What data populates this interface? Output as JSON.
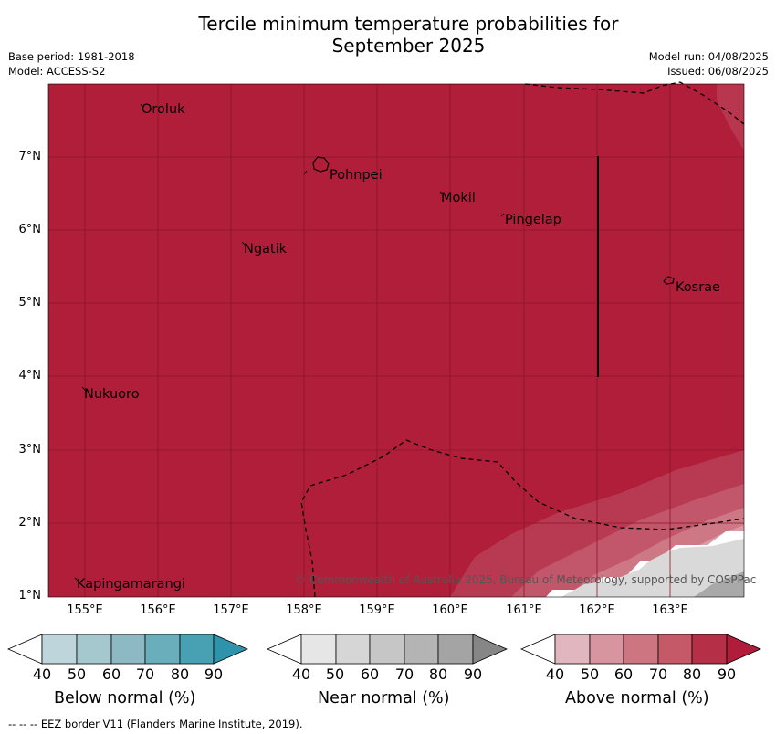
{
  "title_line1": "Tercile minimum temperature probabilities for",
  "title_line2": "September 2025",
  "base_period": "Base period: 1981-2018",
  "model": "Model: ACCESS-S2",
  "model_run": "Model run: 04/08/2025",
  "issued": "Issued: 06/08/2025",
  "lat_ticks": [
    "7°N",
    "6°N",
    "5°N",
    "4°N",
    "3°N",
    "2°N",
    "1°N"
  ],
  "lon_ticks": [
    "155°E",
    "156°E",
    "157°E",
    "158°E",
    "159°E",
    "160°E",
    "161°E",
    "162°E",
    "163°E"
  ],
  "places": {
    "oroluk": "Oroluk",
    "pohnpei": "Pohnpei",
    "mokil": "Mokil",
    "pingelap": "Pingelap",
    "ngatik": "Ngatik",
    "kosrae": "Kosrae",
    "nukuoro": "Nukuoro",
    "kapingamarangi": "Kapingamarangi"
  },
  "copyright": "© Commonwealth of Australia 2025, Bureau of Meteorology, supported by COSPPac",
  "colorbars": {
    "below": {
      "title": "Below normal (%)",
      "ticks": [
        "40",
        "50",
        "60",
        "70",
        "80",
        "90"
      ],
      "colors": [
        "#ffffff",
        "#bfd5dc",
        "#a5c8cf",
        "#8cb9c3",
        "#6aadbb",
        "#47a1b3",
        "#2e93ab"
      ]
    },
    "near": {
      "title": "Near normal (%)",
      "ticks": [
        "40",
        "50",
        "60",
        "70",
        "80",
        "90"
      ],
      "colors": [
        "#ffffff",
        "#e6e6e6",
        "#d6d6d6",
        "#c6c6c6",
        "#b4b4b4",
        "#a4a4a4",
        "#868686"
      ]
    },
    "above": {
      "title": "Above normal (%)",
      "ticks": [
        "40",
        "50",
        "60",
        "70",
        "80",
        "90"
      ],
      "colors": [
        "#ffffff",
        "#e1b6bf",
        "#d7959f",
        "#cd7682",
        "#c55967",
        "#b52f46",
        "#b01c3a"
      ]
    }
  },
  "footer": "--  --  -- EEZ border V11 (Flanders Marine Institute, 2019).",
  "map_colors": {
    "dominant": "#b01e3a",
    "grid": "#8a1428"
  }
}
